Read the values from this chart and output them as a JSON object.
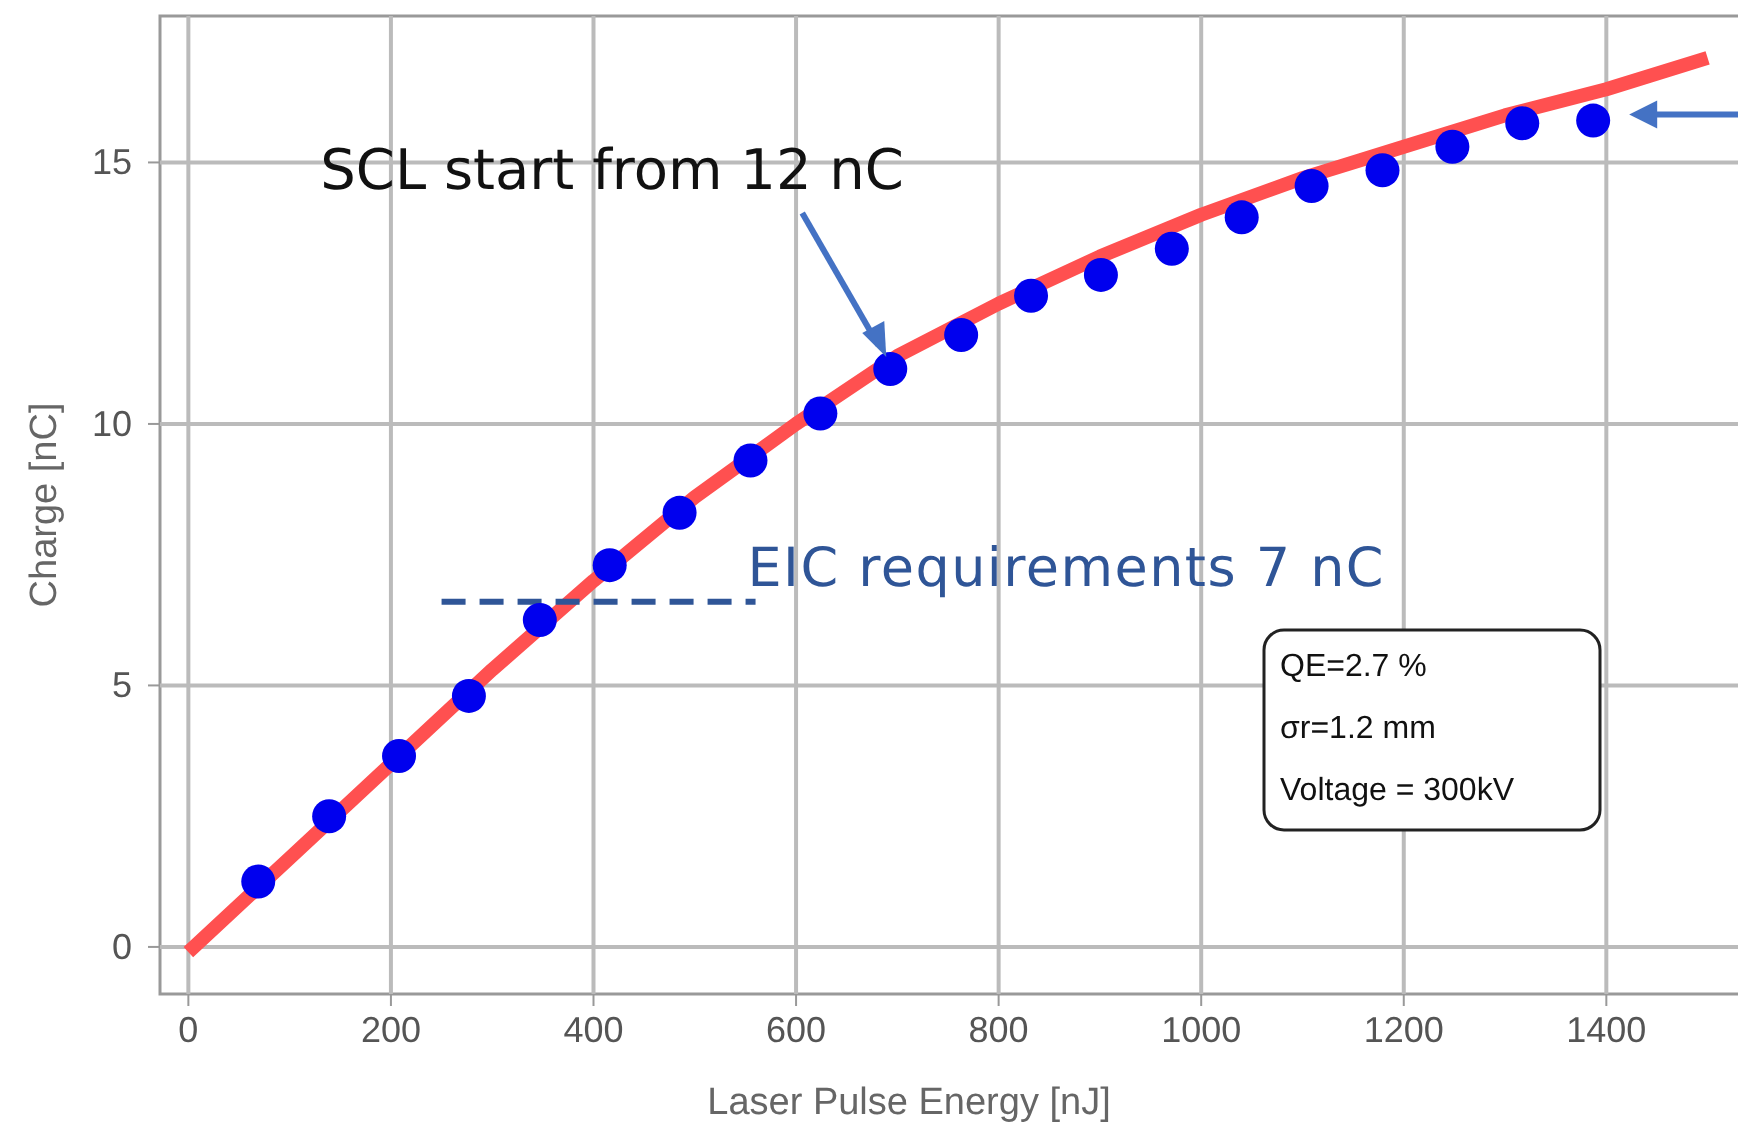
{
  "chart_data": {
    "type": "scatter",
    "xlabel": "Laser Pulse Energy [nJ]",
    "ylabel": "Charge [nC]",
    "xlim": [
      -28,
      1530
    ],
    "ylim": [
      -0.9,
      17.8
    ],
    "xticks": [
      0,
      200,
      400,
      600,
      800,
      1000,
      1200,
      1400
    ],
    "yticks": [
      0,
      5,
      10,
      15
    ],
    "grid": true,
    "series": [
      {
        "type": "line",
        "color": "#ff5050",
        "line_style": "solid",
        "x": [
          0,
          100,
          200,
          300,
          400,
          500,
          600,
          700,
          800,
          900,
          1000,
          1100,
          1200,
          1300,
          1400,
          1500
        ],
        "values": [
          -0.1,
          1.7,
          3.5,
          5.3,
          7.0,
          8.6,
          10.0,
          11.3,
          12.3,
          13.2,
          14.0,
          14.7,
          15.3,
          15.9,
          16.4,
          17.0
        ]
      },
      {
        "type": "line",
        "color": "#2f5597",
        "line_style": "dashed",
        "x": [
          250,
          560
        ],
        "values": [
          6.6,
          6.6
        ]
      },
      {
        "marker": "circle",
        "color": "#0000ee",
        "x": [
          69,
          139,
          208,
          277,
          347,
          416,
          485,
          555,
          624,
          693,
          763,
          832,
          901,
          971,
          1040,
          1109,
          1179,
          1248,
          1317,
          1387
        ],
        "values": [
          1.25,
          2.5,
          3.65,
          4.8,
          6.25,
          7.3,
          8.3,
          9.3,
          10.2,
          11.05,
          11.7,
          12.45,
          12.85,
          13.35,
          13.95,
          14.55,
          14.85,
          15.3,
          15.75,
          15.8
        ]
      }
    ],
    "annotations": [
      {
        "text": "SCL start from 12 nC",
        "x": 693,
        "y": 11.05
      },
      {
        "text": "EIC requirements 7 nC",
        "x": 560,
        "y": 6.6
      },
      "QE=2.7 %",
      "σr=1.2 mm",
      "Voltage = 300kV"
    ]
  }
}
